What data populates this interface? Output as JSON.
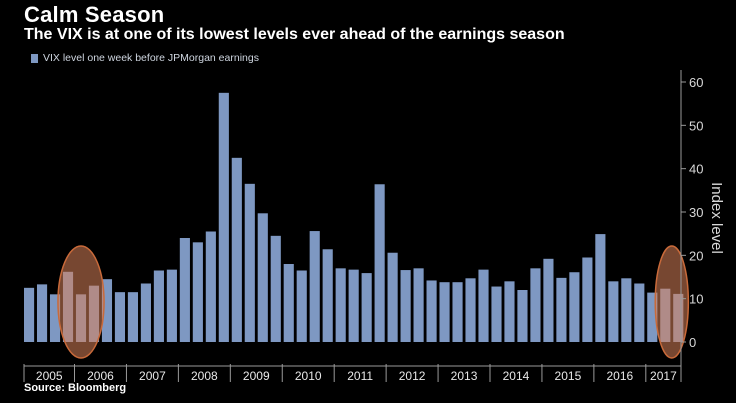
{
  "header": {
    "title": "Calm Season",
    "subtitle": "The VIX is at one of its lowest levels ever ahead of the earnings season"
  },
  "footer": {
    "source": "Source: Bloomberg"
  },
  "colors": {
    "bar": "#7e98c2",
    "highlight_fill": "#d9825a",
    "highlight_stroke": "#c96a3a",
    "axis": "#9a9a9a"
  },
  "chart_data": {
    "type": "bar",
    "legend": [
      "VIX level one week before JPMorgan earnings"
    ],
    "legend_position": "top-left",
    "ylabel": "Index level",
    "ylim": [
      0,
      60
    ],
    "yticks": [
      0,
      10,
      20,
      30,
      40,
      50,
      60
    ],
    "y_axis_side": "right",
    "grid": false,
    "years": [
      "2005",
      "2006",
      "2007",
      "2008",
      "2009",
      "2010",
      "2011",
      "2012",
      "2013",
      "2014",
      "2015",
      "2016",
      "2017"
    ],
    "series": [
      {
        "name": "VIX level one week before JPMorgan earnings",
        "values": [
          12.5,
          13.3,
          11,
          16.2,
          11,
          13,
          14.5,
          11.5,
          11.5,
          13.5,
          16.5,
          16.7,
          24,
          23,
          25.5,
          57.5,
          42.5,
          36.5,
          29.7,
          24.5,
          18,
          16.5,
          25.6,
          21.4,
          17,
          16.7,
          15.9,
          36.4,
          20.6,
          16.6,
          17,
          14.2,
          13.8,
          13.8,
          14.7,
          16.7,
          12.8,
          14,
          12,
          17,
          19.2,
          14.8,
          16.1,
          19.5,
          24.9,
          14,
          14.7,
          13.5,
          11.4,
          12.3,
          11.1
        ]
      }
    ],
    "highlights": [
      {
        "label": "2006",
        "bar_indices": [
          3,
          4,
          5
        ]
      },
      {
        "label": "2017",
        "bar_indices": [
          49,
          50
        ]
      }
    ]
  }
}
